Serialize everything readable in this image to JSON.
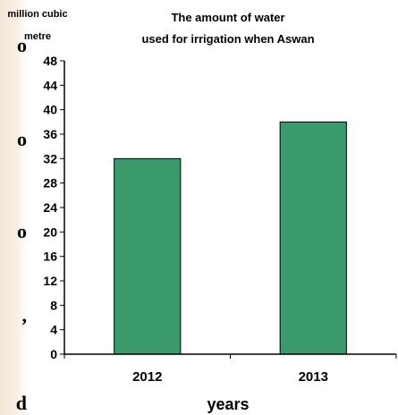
{
  "background": {
    "edge_glyphs": [
      "o",
      "o",
      "o",
      ",",
      "d"
    ]
  },
  "colors": {
    "bar_fill": "#3a9a6b",
    "bar_stroke": "#000000",
    "axis": "#000000",
    "background": "#ffffff"
  },
  "chart_data": {
    "type": "bar",
    "title_lines": [
      "The amount of water",
      "used for irrigation when Aswan"
    ],
    "ylabel_lines": [
      "million cubic",
      "metre"
    ],
    "xlabel": "years",
    "categories": [
      "2012",
      "2013"
    ],
    "values": [
      32,
      38
    ],
    "ylim": [
      0,
      48
    ],
    "yticks": [
      0,
      4,
      8,
      12,
      16,
      20,
      24,
      28,
      32,
      36,
      40,
      44,
      48
    ],
    "grid": false,
    "legend": "none"
  }
}
